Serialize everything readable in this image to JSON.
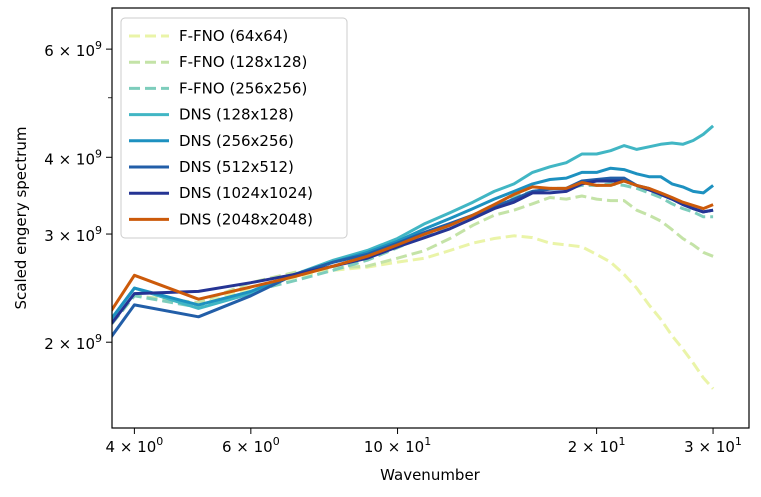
{
  "chart_data": {
    "type": "line",
    "xlabel": "Wavenumber",
    "ylabel": "Scaled engery spectrum",
    "x_scale": "log",
    "y_scale": "log",
    "xlim": [
      3.7,
      34
    ],
    "ylim": [
      1450000000.0,
      7000000000.0
    ],
    "grid": false,
    "legend_position": "top-left",
    "x_ticks": [
      {
        "value": 4,
        "base": "4",
        "exp": "0"
      },
      {
        "value": 6,
        "base": "6",
        "exp": "0"
      },
      {
        "value": 10,
        "base": "10",
        "exp": "1"
      },
      {
        "value": 20,
        "base": "2",
        "exp": "1"
      },
      {
        "value": 30,
        "base": "3",
        "exp": "1"
      }
    ],
    "y_ticks": [
      {
        "value": 2000000000,
        "base": "2",
        "exp": "9"
      },
      {
        "value": 3000000000,
        "base": "3",
        "exp": "9"
      },
      {
        "value": 4000000000,
        "base": "4",
        "exp": "9"
      },
      {
        "value": 6000000000,
        "base": "6",
        "exp": "9"
      }
    ],
    "y_minor_ticks": [
      5000000000
    ],
    "series": [
      {
        "name": "F-FNO (64x64)",
        "color": "#eaf4a8",
        "dash": true,
        "x": [
          3,
          4,
          5,
          6,
          7,
          8,
          9,
          10,
          11,
          12,
          13,
          14,
          15,
          16,
          17,
          18,
          19,
          20,
          21,
          22,
          23,
          24,
          25,
          26,
          27,
          28,
          29,
          30
        ],
        "y": [
          1620000000.0,
          2380000000.0,
          2300000000.0,
          2450000000.0,
          2550000000.0,
          2620000000.0,
          2650000000.0,
          2700000000.0,
          2740000000.0,
          2820000000.0,
          2900000000.0,
          2950000000.0,
          2980000000.0,
          2960000000.0,
          2900000000.0,
          2880000000.0,
          2860000000.0,
          2780000000.0,
          2700000000.0,
          2580000000.0,
          2450000000.0,
          2300000000.0,
          2180000000.0,
          2050000000.0,
          1950000000.0,
          1850000000.0,
          1750000000.0,
          1680000000.0
        ]
      },
      {
        "name": "F-FNO (128x128)",
        "color": "#c4e3a7",
        "dash": true,
        "x": [
          3,
          4,
          5,
          6,
          7,
          8,
          9,
          10,
          11,
          12,
          13,
          14,
          15,
          16,
          17,
          18,
          19,
          20,
          21,
          22,
          23,
          24,
          25,
          26,
          27,
          28,
          29,
          30
        ],
        "y": [
          1620000000.0,
          2380000000.0,
          2320000000.0,
          2500000000.0,
          2600000000.0,
          2640000000.0,
          2660000000.0,
          2740000000.0,
          2820000000.0,
          2950000000.0,
          3100000000.0,
          3220000000.0,
          3280000000.0,
          3360000000.0,
          3440000000.0,
          3420000000.0,
          3460000000.0,
          3420000000.0,
          3400000000.0,
          3400000000.0,
          3280000000.0,
          3220000000.0,
          3150000000.0,
          3050000000.0,
          2950000000.0,
          2880000000.0,
          2800000000.0,
          2760000000.0
        ]
      },
      {
        "name": "F-FNO (256x256)",
        "color": "#7dcdbc",
        "dash": true,
        "x": [
          3,
          4,
          5,
          6,
          7,
          8,
          9,
          10,
          11,
          12,
          13,
          14,
          15,
          16,
          17,
          18,
          19,
          20,
          21,
          22,
          23,
          24,
          25,
          26,
          27,
          28,
          29,
          30
        ],
        "y": [
          1620000000.0,
          2380000000.0,
          2280000000.0,
          2420000000.0,
          2520000000.0,
          2620000000.0,
          2720000000.0,
          2850000000.0,
          2980000000.0,
          3100000000.0,
          3220000000.0,
          3350000000.0,
          3450000000.0,
          3520000000.0,
          3560000000.0,
          3560000000.0,
          3600000000.0,
          3600000000.0,
          3620000000.0,
          3600000000.0,
          3560000000.0,
          3500000000.0,
          3440000000.0,
          3360000000.0,
          3300000000.0,
          3260000000.0,
          3200000000.0,
          3200000000.0
        ]
      },
      {
        "name": "DNS (128x128)",
        "color": "#41b6c4",
        "x": [
          3,
          4,
          5,
          6,
          7,
          8,
          9,
          10,
          11,
          12,
          13,
          14,
          15,
          16,
          17,
          18,
          19,
          20,
          21,
          22,
          23,
          24,
          25,
          26,
          27,
          28,
          29,
          30
        ],
        "y": [
          1620000000.0,
          2450000000.0,
          2270000000.0,
          2400000000.0,
          2580000000.0,
          2720000000.0,
          2820000000.0,
          2950000000.0,
          3120000000.0,
          3250000000.0,
          3380000000.0,
          3520000000.0,
          3620000000.0,
          3780000000.0,
          3860000000.0,
          3920000000.0,
          4050000000.0,
          4050000000.0,
          4100000000.0,
          4180000000.0,
          4120000000.0,
          4160000000.0,
          4200000000.0,
          4220000000.0,
          4200000000.0,
          4260000000.0,
          4360000000.0,
          4500000000.0
        ]
      },
      {
        "name": "DNS (256x256)",
        "color": "#1d91c0",
        "x": [
          3,
          4,
          5,
          6,
          7,
          8,
          9,
          10,
          11,
          12,
          13,
          14,
          15,
          16,
          17,
          18,
          19,
          20,
          21,
          22,
          23,
          24,
          25,
          26,
          27,
          28,
          29,
          30
        ],
        "y": [
          1620000000.0,
          2450000000.0,
          2300000000.0,
          2420000000.0,
          2580000000.0,
          2700000000.0,
          2800000000.0,
          2920000000.0,
          3060000000.0,
          3180000000.0,
          3300000000.0,
          3420000000.0,
          3520000000.0,
          3620000000.0,
          3680000000.0,
          3700000000.0,
          3780000000.0,
          3780000000.0,
          3840000000.0,
          3820000000.0,
          3760000000.0,
          3720000000.0,
          3720000000.0,
          3620000000.0,
          3580000000.0,
          3520000000.0,
          3500000000.0,
          3600000000.0
        ]
      },
      {
        "name": "DNS (512x512)",
        "color": "#225ea8",
        "x": [
          3,
          4,
          5,
          6,
          7,
          8,
          9,
          10,
          11,
          12,
          13,
          14,
          15,
          16,
          17,
          18,
          19,
          20,
          21,
          22,
          23,
          24,
          25,
          26,
          27,
          28,
          29,
          30
        ],
        "y": [
          1500000000.0,
          2300000000.0,
          2200000000.0,
          2380000000.0,
          2580000000.0,
          2700000000.0,
          2780000000.0,
          2900000000.0,
          3020000000.0,
          3120000000.0,
          3220000000.0,
          3320000000.0,
          3420000000.0,
          3520000000.0,
          3550000000.0,
          3560000000.0,
          3660000000.0,
          3680000000.0,
          3700000000.0,
          3700000000.0,
          3600000000.0,
          3560000000.0,
          3480000000.0,
          3420000000.0,
          3360000000.0,
          3300000000.0,
          3260000000.0,
          3280000000.0
        ]
      },
      {
        "name": "DNS (1024x1024)",
        "color": "#253494",
        "x": [
          3,
          4,
          5,
          6,
          7,
          8,
          9,
          10,
          11,
          12,
          13,
          14,
          15,
          16,
          17,
          18,
          19,
          20,
          21,
          22,
          23,
          24,
          25,
          26,
          27,
          28,
          29,
          30
        ],
        "y": [
          1600000000.0,
          2400000000.0,
          2420000000.0,
          2500000000.0,
          2580000000.0,
          2660000000.0,
          2740000000.0,
          2860000000.0,
          2960000000.0,
          3060000000.0,
          3180000000.0,
          3300000000.0,
          3380000000.0,
          3500000000.0,
          3500000000.0,
          3520000000.0,
          3620000000.0,
          3660000000.0,
          3660000000.0,
          3660000000.0,
          3600000000.0,
          3540000000.0,
          3480000000.0,
          3420000000.0,
          3350000000.0,
          3300000000.0,
          3260000000.0,
          3280000000.0
        ]
      },
      {
        "name": "DNS (2048x2048)",
        "color": "#cc5a0a",
        "x": [
          3,
          4,
          5,
          6,
          7,
          8,
          9,
          10,
          11,
          12,
          13,
          14,
          15,
          16,
          17,
          18,
          19,
          20,
          21,
          22,
          23,
          24,
          25,
          26,
          27,
          28,
          29,
          30
        ],
        "y": [
          1600000000.0,
          2570000000.0,
          2350000000.0,
          2460000000.0,
          2560000000.0,
          2660000000.0,
          2760000000.0,
          2880000000.0,
          3000000000.0,
          3100000000.0,
          3220000000.0,
          3350000000.0,
          3480000000.0,
          3580000000.0,
          3560000000.0,
          3560000000.0,
          3640000000.0,
          3600000000.0,
          3600000000.0,
          3660000000.0,
          3600000000.0,
          3560000000.0,
          3500000000.0,
          3440000000.0,
          3380000000.0,
          3340000000.0,
          3300000000.0,
          3350000000.0
        ]
      }
    ]
  }
}
